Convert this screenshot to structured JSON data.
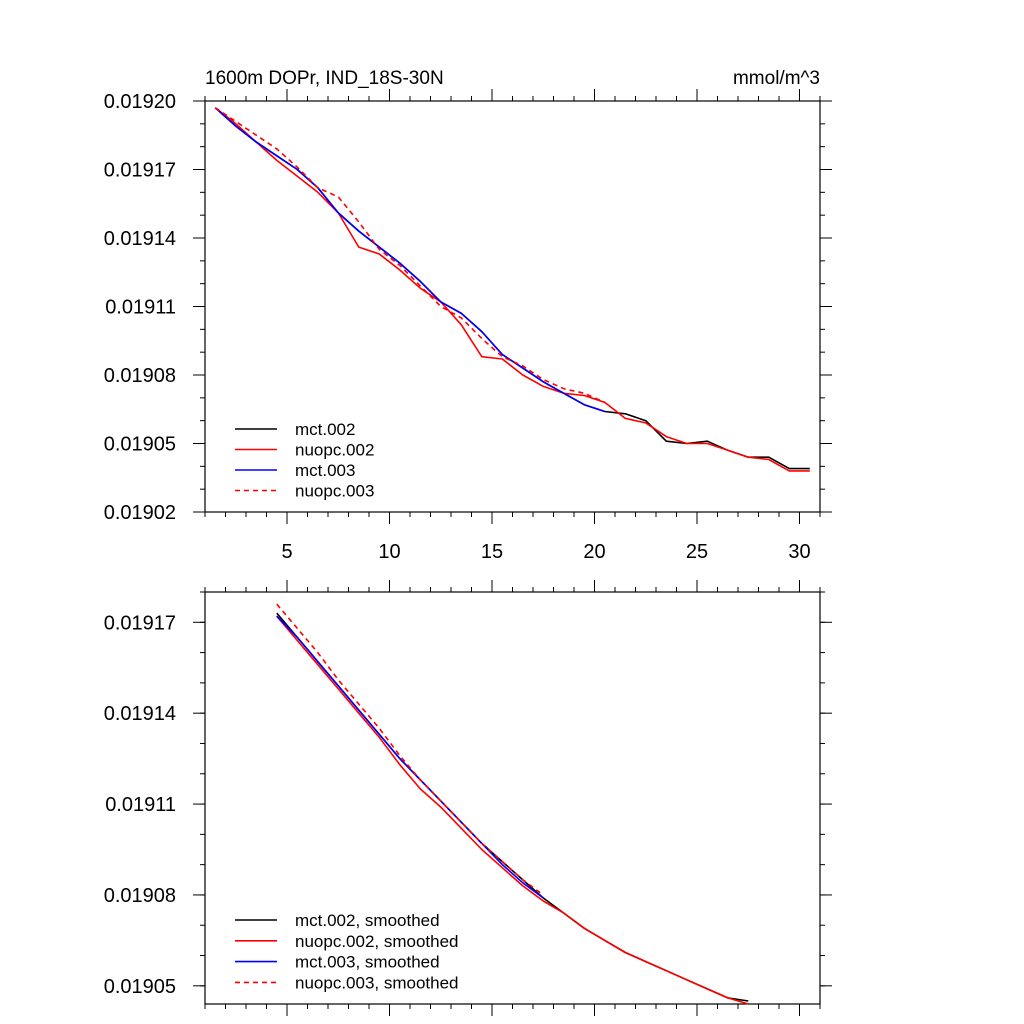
{
  "charts": [
    {
      "type": "line",
      "title": "1600m DOPr, IND_18S-30N",
      "units": "mmol/m^3",
      "xlim": [
        1,
        31
      ],
      "ylim": [
        0.01902,
        0.0192
      ],
      "x_ticks": [
        5,
        10,
        15,
        20,
        25,
        30
      ],
      "x_tick_labels": [
        "5",
        "10",
        "15",
        "20",
        "25",
        "30"
      ],
      "y_ticks": [
        0.01902,
        0.01905,
        0.01908,
        0.01911,
        0.01914,
        0.01917,
        0.0192
      ],
      "y_tick_labels": [
        "0.01902",
        "0.01905",
        "0.01908",
        "0.01911",
        "0.01914",
        "0.01917",
        "0.01920"
      ],
      "legend_position": "bottom-left",
      "series": [
        {
          "name": "mct.002",
          "color": "#000000",
          "dash": "solid",
          "x": [
            1.5,
            2.5,
            3.5,
            4.5,
            5.5,
            6.5,
            7.5,
            8.5,
            9.5,
            10.5,
            11.5,
            12.5,
            13.5,
            14.5,
            15.5,
            16.5,
            17.5,
            18.5,
            19.5,
            20.5,
            21.5,
            22.5,
            23.5,
            24.5,
            25.5,
            26.5,
            27.5,
            28.5,
            29.5,
            30.5
          ],
          "y": [
            0.019197,
            0.019189,
            0.019182,
            0.019176,
            0.01917,
            0.019162,
            0.019151,
            0.019143,
            0.019136,
            0.019129,
            0.019121,
            0.019112,
            0.019107,
            0.019099,
            0.019089,
            0.019083,
            0.019077,
            0.019072,
            0.019067,
            0.019064,
            0.019063,
            0.01906,
            0.019051,
            0.01905,
            0.019051,
            0.019047,
            0.019044,
            0.019044,
            0.019039,
            0.019039
          ]
        },
        {
          "name": "nuopc.002",
          "color": "#ff0000",
          "dash": "solid",
          "x": [
            1.5,
            2.5,
            3.5,
            4.5,
            5.5,
            6.5,
            7.5,
            8.5,
            9.5,
            10.5,
            11.5,
            12.5,
            13.5,
            14.5,
            15.5,
            16.5,
            17.5,
            18.5,
            19.5,
            20.5,
            21.5,
            22.5,
            23.5,
            24.5,
            25.5,
            26.5,
            27.5,
            28.5,
            29.5,
            30.5
          ],
          "y": [
            0.019197,
            0.01919,
            0.019182,
            0.019174,
            0.019167,
            0.01916,
            0.019151,
            0.019136,
            0.019133,
            0.019126,
            0.019118,
            0.019112,
            0.019102,
            0.019088,
            0.019087,
            0.01908,
            0.019075,
            0.019072,
            0.019071,
            0.019068,
            0.019061,
            0.019059,
            0.019053,
            0.01905,
            0.01905,
            0.019047,
            0.019044,
            0.019043,
            0.019038,
            0.019038
          ]
        },
        {
          "name": "mct.003",
          "color": "#0000ff",
          "dash": "solid",
          "x": [
            1.5,
            2.5,
            3.5,
            4.5,
            5.5,
            6.5,
            7.5,
            8.5,
            9.5,
            10.5,
            11.5,
            12.5,
            13.5,
            14.5,
            15.5,
            16.5,
            17.5,
            18.5,
            19.5,
            20.5
          ],
          "y": [
            0.019197,
            0.019189,
            0.019182,
            0.019176,
            0.01917,
            0.019162,
            0.019151,
            0.019143,
            0.019136,
            0.019129,
            0.019121,
            0.019112,
            0.019107,
            0.019099,
            0.019089,
            0.019083,
            0.019077,
            0.019072,
            0.019067,
            0.019064
          ]
        },
        {
          "name": "nuopc.003",
          "color": "#ff0000",
          "dash": "dashed",
          "x": [
            1.5,
            2.5,
            3.5,
            4.5,
            5.5,
            6.5,
            7.5,
            8.5,
            9.5,
            10.5,
            11.5,
            12.5,
            13.5,
            14.5,
            15.5,
            16.5,
            17.5,
            18.5,
            19.5,
            20.5
          ],
          "y": [
            0.019197,
            0.019191,
            0.019185,
            0.019179,
            0.019171,
            0.019162,
            0.019158,
            0.019147,
            0.019135,
            0.019128,
            0.019119,
            0.01911,
            0.019105,
            0.019096,
            0.019088,
            0.019084,
            0.019078,
            0.019074,
            0.019072,
            0.019068
          ]
        }
      ]
    },
    {
      "type": "line",
      "xlim": [
        1,
        31
      ],
      "ylim": [
        0.019044,
        0.01918
      ],
      "x_ticks": [
        5,
        10,
        15,
        20,
        25,
        30
      ],
      "y_ticks": [
        0.01905,
        0.01908,
        0.01911,
        0.01914,
        0.01917
      ],
      "y_tick_labels": [
        "0.01905",
        "0.01908",
        "0.01911",
        "0.01914",
        "0.01917"
      ],
      "legend_position": "bottom-left",
      "series": [
        {
          "name": "mct.002, smoothed",
          "color": "#000000",
          "dash": "solid",
          "x": [
            4.5,
            5.5,
            6.5,
            7.5,
            8.5,
            9.5,
            10.5,
            11.5,
            12.5,
            13.5,
            14.5,
            15.5,
            16.5,
            17.5,
            18.5,
            19.5,
            20.5,
            21.5,
            22.5,
            23.5,
            24.5,
            25.5,
            26.5,
            27.5
          ],
          "y": [
            0.019173,
            0.019165,
            0.019157,
            0.019149,
            0.019141,
            0.019133,
            0.019125,
            0.019118,
            0.019111,
            0.019104,
            0.019097,
            0.019091,
            0.019085,
            0.019079,
            0.019074,
            0.019069,
            0.019065,
            0.019061,
            0.019058,
            0.019055,
            0.019052,
            0.019049,
            0.019046,
            0.019045
          ]
        },
        {
          "name": "nuopc.002, smoothed",
          "color": "#ff0000",
          "dash": "solid",
          "x": [
            4.5,
            5.5,
            6.5,
            7.5,
            8.5,
            9.5,
            10.5,
            11.5,
            12.5,
            13.5,
            14.5,
            15.5,
            16.5,
            17.5,
            18.5,
            19.5,
            20.5,
            21.5,
            22.5,
            23.5,
            24.5,
            25.5,
            26.5,
            27.5
          ],
          "y": [
            0.019172,
            0.019164,
            0.019156,
            0.019148,
            0.01914,
            0.019132,
            0.019123,
            0.019115,
            0.019109,
            0.019102,
            0.019095,
            0.019089,
            0.019083,
            0.019078,
            0.019074,
            0.019069,
            0.019065,
            0.019061,
            0.019058,
            0.019055,
            0.019052,
            0.019049,
            0.019046,
            0.019044
          ]
        },
        {
          "name": "mct.003, smoothed",
          "color": "#0000ff",
          "dash": "solid",
          "x": [
            4.5,
            5.5,
            6.5,
            7.5,
            8.5,
            9.5,
            10.5,
            11.5,
            12.5,
            13.5,
            14.5,
            15.5,
            16.5,
            17.5
          ],
          "y": [
            0.019172,
            0.019165,
            0.019157,
            0.019149,
            0.019141,
            0.019133,
            0.019125,
            0.019118,
            0.019111,
            0.019104,
            0.019097,
            0.01909,
            0.019084,
            0.019079
          ]
        },
        {
          "name": "nuopc.003, smoothed",
          "color": "#ff0000",
          "dash": "dashed",
          "x": [
            4.5,
            5.5,
            6.5,
            7.5,
            8.5,
            9.5,
            10.5,
            11.5,
            12.5,
            13.5,
            14.5,
            15.5,
            16.5,
            17.5
          ],
          "y": [
            0.019176,
            0.019168,
            0.01916,
            0.019151,
            0.019143,
            0.019135,
            0.019126,
            0.019118,
            0.019111,
            0.019104,
            0.019097,
            0.019091,
            0.019085,
            0.01908
          ]
        }
      ]
    }
  ]
}
